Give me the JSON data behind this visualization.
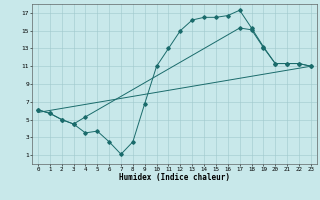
{
  "xlabel": "Humidex (Indice chaleur)",
  "background_color": "#c8e8ea",
  "grid_color": "#a0c8cc",
  "line_color": "#1a6b6b",
  "xlim": [
    -0.5,
    23.5
  ],
  "ylim": [
    0,
    18
  ],
  "xticks": [
    0,
    1,
    2,
    3,
    4,
    5,
    6,
    7,
    8,
    9,
    10,
    11,
    12,
    13,
    14,
    15,
    16,
    17,
    18,
    19,
    20,
    21,
    22,
    23
  ],
  "yticks": [
    1,
    3,
    5,
    7,
    9,
    11,
    13,
    15,
    17
  ],
  "line1_x": [
    0,
    1,
    2,
    3,
    4,
    5,
    6,
    7,
    8,
    9,
    10,
    11,
    12,
    13,
    14,
    15,
    16,
    17,
    18,
    19,
    20,
    21,
    22,
    23
  ],
  "line1_y": [
    6.1,
    5.7,
    5.0,
    4.5,
    3.5,
    3.7,
    2.5,
    1.1,
    2.5,
    6.8,
    11.0,
    13.0,
    15.0,
    16.2,
    16.5,
    16.5,
    16.7,
    17.3,
    15.3,
    13.2,
    11.3,
    11.3,
    11.3,
    11.0
  ],
  "line2_x": [
    0,
    1,
    2,
    3,
    4,
    17,
    18,
    19,
    20,
    21,
    22,
    23
  ],
  "line2_y": [
    6.1,
    5.7,
    5.0,
    4.5,
    5.3,
    15.3,
    15.1,
    13.1,
    11.3,
    11.3,
    11.3,
    11.0
  ],
  "line3_x": [
    0,
    23
  ],
  "line3_y": [
    5.8,
    11.0
  ],
  "figsize": [
    3.2,
    2.0
  ],
  "dpi": 100
}
